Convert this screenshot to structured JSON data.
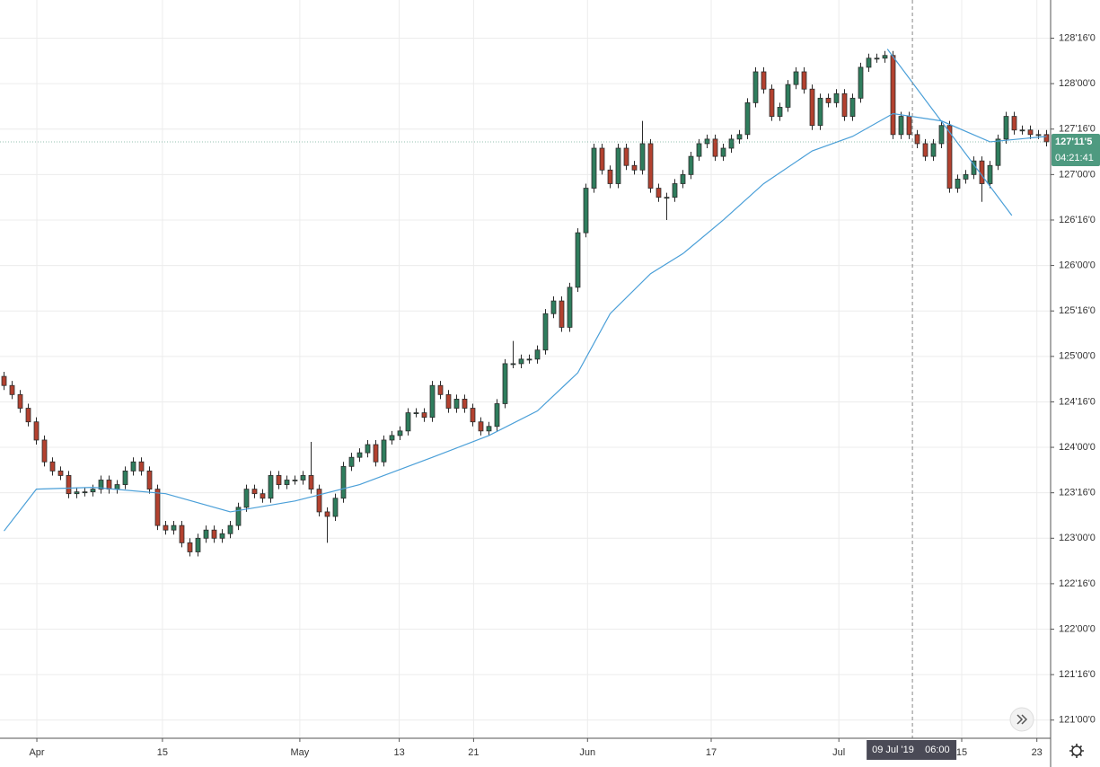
{
  "chart_data": {
    "type": "candlestick",
    "xlim": [
      -0.5,
      129.5
    ],
    "ylim": [
      120.8,
      128.92
    ],
    "xticks": [
      {
        "value": 4.06,
        "label": "Apr"
      },
      {
        "value": 19.6,
        "label": "15"
      },
      {
        "value": 36.6,
        "label": "May"
      },
      {
        "value": 48.9,
        "label": "13"
      },
      {
        "value": 58.1,
        "label": "21"
      },
      {
        "value": 72.2,
        "label": "Jun"
      },
      {
        "value": 87.5,
        "label": "17"
      },
      {
        "value": 103.3,
        "label": "Jul"
      },
      {
        "value": 118.5,
        "label": "15"
      },
      {
        "value": 127.8,
        "label": "23"
      }
    ],
    "yticks": [
      {
        "value": 121,
        "label": "121'00'0"
      },
      {
        "value": 121.5,
        "label": "121'16'0"
      },
      {
        "value": 122,
        "label": "122'00'0"
      },
      {
        "value": 122.5,
        "label": "122'16'0"
      },
      {
        "value": 123,
        "label": "123'00'0"
      },
      {
        "value": 123.5,
        "label": "123'16'0"
      },
      {
        "value": 124,
        "label": "124'00'0"
      },
      {
        "value": 124.5,
        "label": "124'16'0"
      },
      {
        "value": 125,
        "label": "125'00'0"
      },
      {
        "value": 125.5,
        "label": "125'16'0"
      },
      {
        "value": 126,
        "label": "126'00'0"
      },
      {
        "value": 126.5,
        "label": "126'16'0"
      },
      {
        "value": 127,
        "label": "127'00'0"
      },
      {
        "value": 127.5,
        "label": "127'16'0"
      },
      {
        "value": 128,
        "label": "128'00'0"
      },
      {
        "value": 128.5,
        "label": "128'16'0"
      }
    ],
    "grid": true,
    "up_color": "#2f7d5d",
    "down_color": "#b3412f",
    "wick_color": "#2b2b2b",
    "open": [
      124.78,
      124.68,
      124.58,
      124.43,
      124.28,
      124.08,
      123.84,
      123.74,
      123.69,
      123.49,
      123.51,
      123.51,
      123.54,
      123.64,
      123.54,
      123.59,
      123.74,
      123.84,
      123.74,
      123.54,
      123.14,
      123.09,
      123.14,
      122.95,
      122.85,
      123.0,
      123.09,
      123.0,
      123.05,
      123.14,
      123.34,
      123.54,
      123.49,
      123.44,
      123.69,
      123.59,
      123.64,
      123.64,
      123.69,
      123.54,
      123.29,
      123.24,
      123.44,
      123.79,
      123.89,
      123.94,
      124.03,
      123.84,
      124.08,
      124.13,
      124.18,
      124.38,
      124.38,
      124.33,
      124.68,
      124.58,
      124.43,
      124.53,
      124.43,
      124.28,
      124.18,
      124.23,
      124.48,
      124.92,
      124.92,
      124.97,
      124.97,
      125.07,
      125.47,
      125.61,
      125.32,
      125.76,
      126.36,
      126.85,
      127.29,
      127.05,
      126.9,
      127.29,
      127.1,
      127.05,
      127.34,
      126.85,
      126.75,
      126.75,
      126.9,
      127.0,
      127.2,
      127.34,
      127.39,
      127.2,
      127.29,
      127.39,
      127.44,
      127.79,
      128.13,
      127.94,
      127.64,
      127.74,
      127.99,
      128.13,
      127.94,
      127.54,
      127.84,
      127.79,
      127.89,
      127.64,
      127.84,
      128.18,
      128.28,
      128.28,
      128.31,
      127.44,
      127.64,
      127.44,
      127.34,
      127.2,
      127.34,
      127.54,
      126.85,
      126.95,
      127.0,
      127.15,
      126.9,
      127.1,
      127.39,
      127.64,
      127.49,
      127.49,
      127.44,
      127.44
    ],
    "high": [
      124.83,
      124.73,
      124.63,
      124.48,
      124.33,
      124.13,
      123.89,
      123.79,
      123.74,
      123.56,
      123.56,
      123.59,
      123.69,
      123.69,
      123.64,
      123.79,
      123.89,
      123.89,
      123.79,
      123.59,
      123.19,
      123.19,
      123.19,
      123.0,
      123.05,
      123.14,
      123.14,
      123.1,
      123.19,
      123.39,
      123.59,
      123.59,
      123.54,
      123.74,
      123.74,
      123.69,
      123.69,
      123.74,
      124.06,
      123.59,
      123.34,
      123.49,
      123.84,
      123.94,
      123.99,
      124.08,
      124.08,
      124.13,
      124.18,
      124.23,
      124.43,
      124.43,
      124.43,
      124.73,
      124.73,
      124.63,
      124.58,
      124.58,
      124.48,
      124.33,
      124.28,
      124.53,
      124.97,
      125.17,
      125.02,
      125.02,
      125.12,
      125.52,
      125.66,
      125.66,
      125.81,
      126.41,
      126.9,
      127.34,
      127.34,
      127.1,
      127.34,
      127.34,
      127.15,
      127.59,
      127.39,
      126.9,
      126.8,
      126.95,
      127.05,
      127.25,
      127.39,
      127.44,
      127.44,
      127.34,
      127.44,
      127.49,
      127.84,
      128.18,
      128.18,
      127.99,
      127.79,
      128.04,
      128.18,
      128.18,
      127.99,
      127.89,
      127.89,
      127.94,
      127.94,
      127.89,
      128.23,
      128.33,
      128.33,
      128.36,
      128.36,
      127.69,
      127.69,
      127.49,
      127.39,
      127.39,
      127.59,
      127.59,
      127.0,
      127.05,
      127.2,
      127.2,
      127.15,
      127.44,
      127.69,
      127.69,
      127.54,
      127.54,
      127.49,
      127.49
    ],
    "low": [
      124.63,
      124.53,
      124.38,
      124.23,
      124.03,
      123.79,
      123.69,
      123.64,
      123.44,
      123.44,
      123.46,
      123.46,
      123.49,
      123.49,
      123.49,
      123.54,
      123.69,
      123.69,
      123.49,
      123.09,
      123.04,
      123.04,
      122.9,
      122.8,
      122.8,
      122.95,
      122.95,
      122.95,
      123.0,
      123.09,
      123.29,
      123.44,
      123.39,
      123.39,
      123.54,
      123.54,
      123.59,
      123.59,
      123.49,
      123.24,
      122.95,
      123.19,
      123.39,
      123.74,
      123.84,
      123.89,
      123.79,
      123.79,
      124.03,
      124.08,
      124.13,
      124.33,
      124.28,
      124.28,
      124.53,
      124.38,
      124.38,
      124.38,
      124.23,
      124.13,
      124.13,
      124.18,
      124.43,
      124.87,
      124.87,
      124.92,
      124.92,
      125.02,
      125.42,
      125.27,
      125.27,
      125.71,
      126.31,
      126.8,
      127.0,
      126.85,
      126.85,
      127.05,
      127.0,
      127.0,
      126.8,
      126.7,
      126.5,
      126.7,
      126.85,
      126.95,
      127.15,
      127.29,
      127.15,
      127.15,
      127.24,
      127.34,
      127.39,
      127.74,
      127.89,
      127.59,
      127.59,
      127.69,
      127.94,
      127.89,
      127.49,
      127.49,
      127.74,
      127.74,
      127.59,
      127.59,
      127.79,
      128.13,
      128.23,
      128.23,
      127.39,
      127.39,
      127.39,
      127.29,
      127.15,
      127.15,
      127.29,
      126.8,
      126.8,
      126.9,
      126.95,
      126.7,
      126.85,
      127.05,
      127.34,
      127.44,
      127.44,
      127.39,
      127.39,
      127.31
    ],
    "close": [
      124.68,
      124.58,
      124.43,
      124.28,
      124.08,
      123.84,
      123.74,
      123.69,
      123.49,
      123.51,
      123.51,
      123.54,
      123.64,
      123.54,
      123.59,
      123.74,
      123.84,
      123.74,
      123.54,
      123.14,
      123.09,
      123.14,
      122.95,
      122.85,
      123.0,
      123.09,
      123.0,
      123.05,
      123.14,
      123.34,
      123.54,
      123.49,
      123.44,
      123.69,
      123.59,
      123.64,
      123.64,
      123.69,
      123.54,
      123.29,
      123.24,
      123.44,
      123.79,
      123.89,
      123.94,
      124.03,
      123.84,
      124.08,
      124.13,
      124.18,
      124.38,
      124.38,
      124.33,
      124.68,
      124.58,
      124.43,
      124.53,
      124.43,
      124.28,
      124.18,
      124.23,
      124.48,
      124.92,
      124.92,
      124.97,
      124.97,
      125.07,
      125.47,
      125.61,
      125.32,
      125.76,
      126.36,
      126.85,
      127.29,
      127.05,
      126.9,
      127.29,
      127.1,
      127.05,
      127.34,
      126.85,
      126.75,
      126.75,
      126.9,
      127.0,
      127.2,
      127.34,
      127.39,
      127.2,
      127.29,
      127.39,
      127.44,
      127.79,
      128.13,
      127.94,
      127.64,
      127.74,
      127.99,
      128.13,
      127.94,
      127.54,
      127.84,
      127.79,
      127.89,
      127.64,
      127.84,
      128.18,
      128.28,
      128.28,
      128.31,
      127.44,
      127.64,
      127.44,
      127.34,
      127.2,
      127.34,
      127.54,
      126.85,
      126.95,
      127.0,
      127.15,
      126.9,
      127.1,
      127.39,
      127.64,
      127.49,
      127.49,
      127.44,
      127.44,
      127.36
    ],
    "ma": {
      "color": "#4a9fd8",
      "x": [
        0,
        4,
        11,
        20,
        28,
        36,
        44,
        53,
        60,
        66,
        71,
        75,
        80,
        84,
        89,
        94,
        100,
        105,
        110,
        116,
        122,
        129
      ],
      "values": [
        123.08,
        123.54,
        123.56,
        123.49,
        123.29,
        123.41,
        123.59,
        123.89,
        124.13,
        124.4,
        124.82,
        125.47,
        125.91,
        126.13,
        126.5,
        126.9,
        127.26,
        127.42,
        127.67,
        127.59,
        127.36,
        127.42
      ]
    },
    "trendline": {
      "color": "#4a9fd8",
      "x": [
        109.3,
        124.7
      ],
      "y": [
        128.38,
        126.55
      ]
    },
    "last_price": {
      "value": 127.359,
      "label": "127'11'5",
      "countdown": "04:21:41",
      "color": "#4e9a80"
    },
    "crosshair": {
      "x": 112.4,
      "date": "09 Jul '19",
      "time": "06:00"
    }
  }
}
